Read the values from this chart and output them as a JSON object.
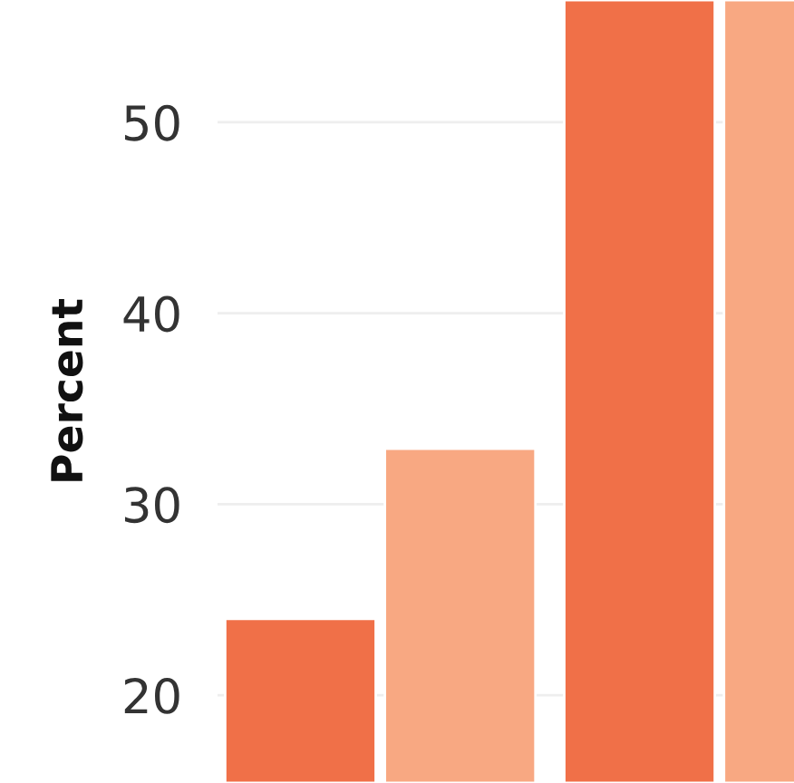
{
  "chart_data": {
    "type": "bar",
    "ylabel": "Percent",
    "categories": [
      null,
      null
    ],
    "series": [
      {
        "color": "#f07048",
        "values": [
          24.0,
          56.4
        ]
      },
      {
        "color": "#f8a882",
        "values": [
          32.9,
          56.4
        ]
      }
    ],
    "ylim": [
      15.4,
      56.4
    ],
    "yticks": [
      20,
      30,
      40,
      50
    ],
    "grid": "y",
    "legend": false
  }
}
